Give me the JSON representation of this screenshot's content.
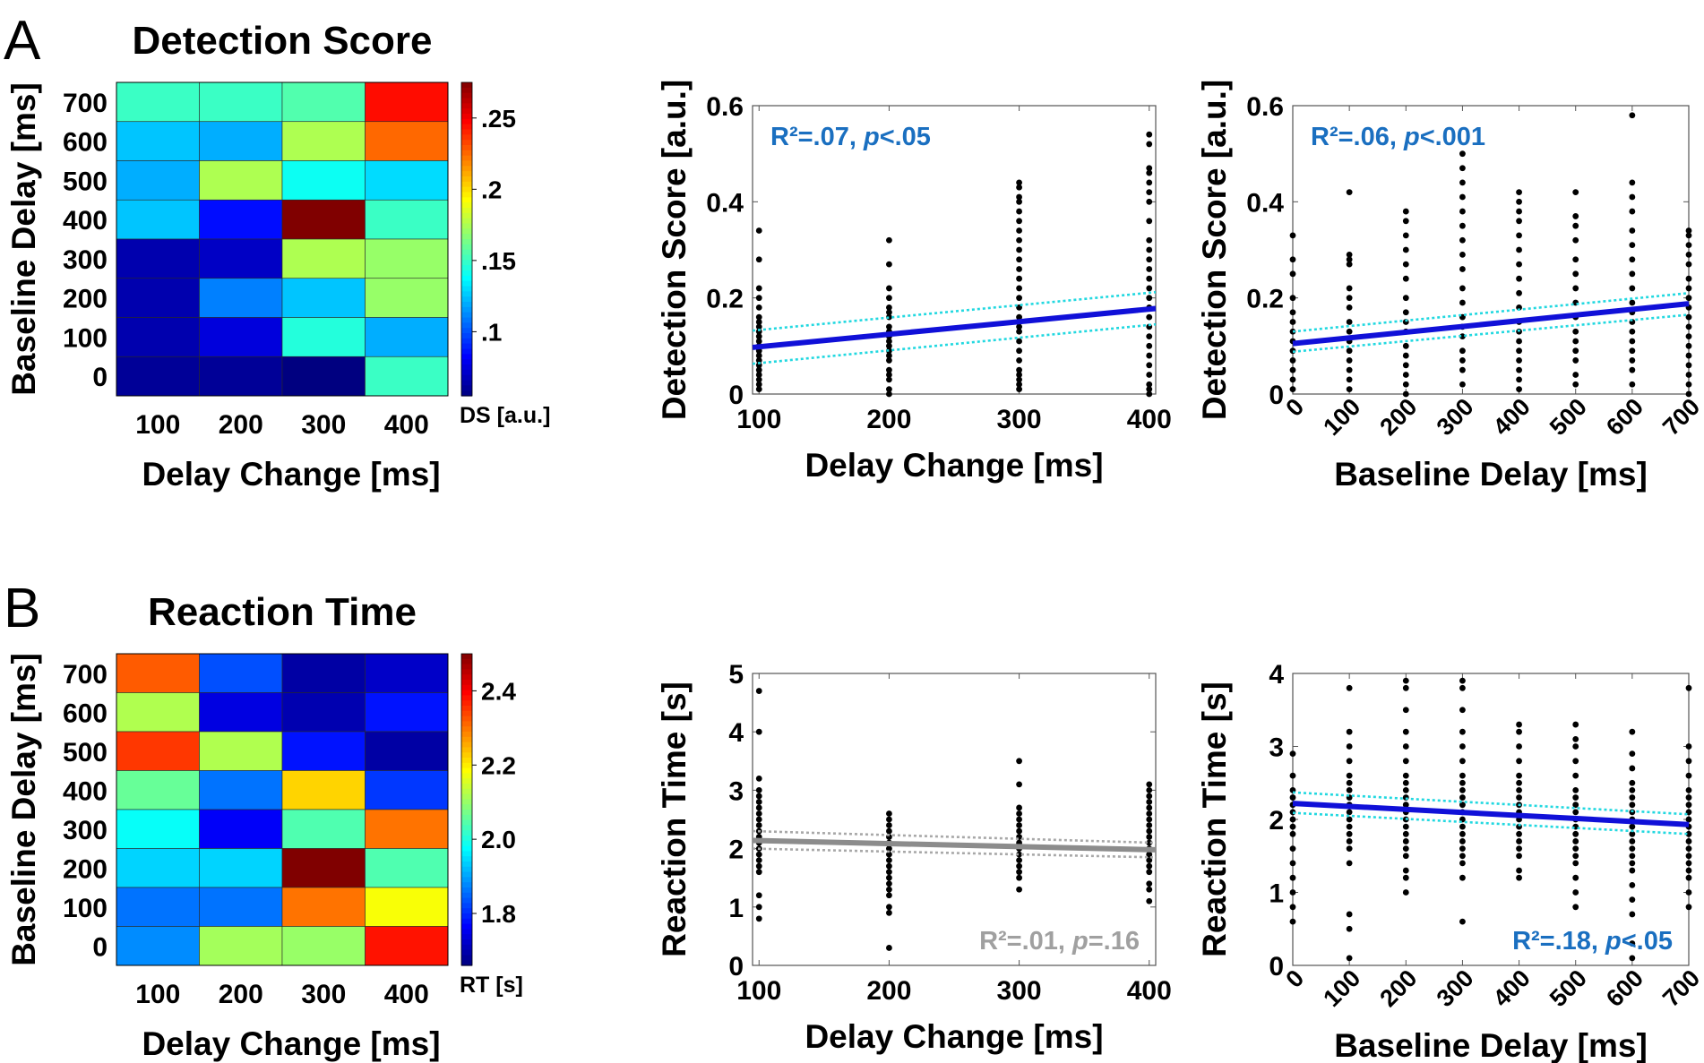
{
  "panels": {
    "a": "A",
    "b": "B"
  },
  "colors": {
    "blue_line": "#1010d8",
    "ci_line": "#22d8e0",
    "gray_line": "#8c8c8c",
    "gray_ci": "#a8a8a8",
    "stat_blue": "#1a6fc0",
    "stat_gray": "#a0a0a0"
  },
  "chart_data": [
    {
      "id": "heat-ds",
      "type": "heatmap",
      "title": "Detection Score",
      "xlabel": "Delay Change [ms]",
      "ylabel": "Baseline Delay [ms]",
      "x_categories": [
        "100",
        "200",
        "300",
        "400"
      ],
      "y_categories": [
        "700",
        "600",
        "500",
        "400",
        "300",
        "200",
        "100",
        "0"
      ],
      "values": [
        [
          0.15,
          0.15,
          0.155,
          0.245
        ],
        [
          0.125,
          0.12,
          0.175,
          0.225
        ],
        [
          0.12,
          0.175,
          0.14,
          0.13
        ],
        [
          0.125,
          0.085,
          0.275,
          0.15
        ],
        [
          0.065,
          0.07,
          0.175,
          0.17
        ],
        [
          0.065,
          0.11,
          0.125,
          0.17
        ],
        [
          0.065,
          0.075,
          0.145,
          0.12
        ],
        [
          0.06,
          0.06,
          0.055,
          0.15
        ]
      ],
      "colorbar": {
        "min": 0.055,
        "max": 0.275,
        "ticks": [
          0.1,
          0.15,
          0.2,
          0.25
        ],
        "tick_labels": [
          ".1",
          ".15",
          ".2",
          ".25"
        ],
        "label": "DS [a.u.]"
      }
    },
    {
      "id": "scatter-ds-change",
      "type": "scatter",
      "xlabel": "Delay Change [ms]",
      "ylabel": "Detection Score [a.u.]",
      "xlim": [
        95,
        405
      ],
      "ylim": [
        0,
        0.6
      ],
      "xticks": [
        100,
        200,
        300,
        400
      ],
      "xtick_labels": [
        "100",
        "200",
        "300",
        "400"
      ],
      "yticks": [
        0,
        0.2,
        0.4,
        0.6
      ],
      "ytick_labels": [
        "0",
        "0.2",
        "0.4",
        "0.6"
      ],
      "xtick_rotate": false,
      "points": [
        {
          "x": 100,
          "y": [
            0.34,
            0.28,
            0.22,
            0.2,
            0.18,
            0.16,
            0.15,
            0.14,
            0.13,
            0.12,
            0.11,
            0.1,
            0.09,
            0.08,
            0.07,
            0.06,
            0.05,
            0.04,
            0.03,
            0.02,
            0.01
          ]
        },
        {
          "x": 200,
          "y": [
            0.32,
            0.27,
            0.22,
            0.2,
            0.18,
            0.17,
            0.16,
            0.14,
            0.13,
            0.12,
            0.11,
            0.1,
            0.09,
            0.08,
            0.07,
            0.05,
            0.04,
            0.03,
            0.01,
            0.0
          ]
        },
        {
          "x": 300,
          "y": [
            0.44,
            0.43,
            0.41,
            0.4,
            0.38,
            0.36,
            0.34,
            0.32,
            0.3,
            0.28,
            0.26,
            0.24,
            0.22,
            0.2,
            0.18,
            0.16,
            0.15,
            0.14,
            0.13,
            0.11,
            0.09,
            0.07,
            0.05,
            0.04,
            0.03,
            0.02,
            0.01
          ]
        },
        {
          "x": 400,
          "y": [
            0.54,
            0.52,
            0.47,
            0.46,
            0.44,
            0.42,
            0.4,
            0.36,
            0.32,
            0.3,
            0.28,
            0.26,
            0.24,
            0.22,
            0.2,
            0.18,
            0.16,
            0.14,
            0.12,
            0.1,
            0.08,
            0.06,
            0.04,
            0.02,
            0.01,
            0.0
          ]
        }
      ],
      "fit": {
        "x": [
          95,
          405
        ],
        "y": [
          0.097,
          0.178
        ],
        "ci_upper": [
          0.132,
          0.212
        ],
        "ci_lower": [
          0.063,
          0.145
        ],
        "style": "blue"
      },
      "annotation": {
        "r2": "R²=.07, ",
        "p_sym": "p",
        "p_val": "<.05",
        "position": "top-left",
        "style": "blue"
      }
    },
    {
      "id": "scatter-ds-baseline",
      "type": "scatter",
      "xlabel": "Baseline Delay [ms]",
      "ylabel": "Detection Score [a.u.]",
      "xlim": [
        0,
        700
      ],
      "ylim": [
        0,
        0.6
      ],
      "xticks": [
        0,
        100,
        200,
        300,
        400,
        500,
        600,
        700
      ],
      "xtick_labels": [
        "0",
        "100",
        "200",
        "300",
        "400",
        "500",
        "600",
        "700"
      ],
      "yticks": [
        0,
        0.2,
        0.4,
        0.6
      ],
      "ytick_labels": [
        "0",
        "0.2",
        "0.4",
        "0.6"
      ],
      "xtick_rotate": true,
      "points": [
        {
          "x": 0,
          "y": [
            0.33,
            0.28,
            0.25,
            0.2,
            0.17,
            0.15,
            0.13,
            0.11,
            0.09,
            0.07,
            0.05,
            0.03,
            0.01
          ]
        },
        {
          "x": 100,
          "y": [
            0.42,
            0.29,
            0.28,
            0.27,
            0.22,
            0.2,
            0.18,
            0.15,
            0.13,
            0.11,
            0.09,
            0.07,
            0.05,
            0.03,
            0.01
          ]
        },
        {
          "x": 200,
          "y": [
            0.38,
            0.36,
            0.33,
            0.3,
            0.27,
            0.24,
            0.2,
            0.17,
            0.15,
            0.13,
            0.1,
            0.08,
            0.06,
            0.04,
            0.02,
            0.0
          ]
        },
        {
          "x": 300,
          "y": [
            0.5,
            0.47,
            0.44,
            0.41,
            0.38,
            0.35,
            0.32,
            0.29,
            0.26,
            0.22,
            0.19,
            0.16,
            0.14,
            0.12,
            0.09,
            0.07,
            0.05,
            0.02
          ]
        },
        {
          "x": 400,
          "y": [
            0.42,
            0.4,
            0.38,
            0.36,
            0.33,
            0.3,
            0.27,
            0.24,
            0.21,
            0.18,
            0.15,
            0.13,
            0.11,
            0.09,
            0.07,
            0.05,
            0.03,
            0.01
          ]
        },
        {
          "x": 500,
          "y": [
            0.42,
            0.37,
            0.35,
            0.32,
            0.28,
            0.25,
            0.22,
            0.19,
            0.16,
            0.13,
            0.11,
            0.09,
            0.07,
            0.04,
            0.02
          ]
        },
        {
          "x": 600,
          "y": [
            0.58,
            0.44,
            0.41,
            0.38,
            0.34,
            0.31,
            0.28,
            0.25,
            0.22,
            0.19,
            0.17,
            0.15,
            0.13,
            0.11,
            0.09,
            0.07,
            0.05,
            0.02
          ]
        },
        {
          "x": 700,
          "y": [
            0.34,
            0.33,
            0.31,
            0.29,
            0.27,
            0.24,
            0.22,
            0.2,
            0.18,
            0.16,
            0.14,
            0.12,
            0.1,
            0.08,
            0.06,
            0.04,
            0.02,
            0.0
          ]
        }
      ],
      "fit": {
        "x": [
          0,
          700
        ],
        "y": [
          0.105,
          0.188
        ],
        "ci_upper": [
          0.13,
          0.21
        ],
        "ci_lower": [
          0.088,
          0.165
        ],
        "style": "blue"
      },
      "annotation": {
        "r2": "R²=.06, ",
        "p_sym": "p",
        "p_val": "<.001",
        "position": "top-left",
        "style": "blue"
      }
    },
    {
      "id": "heat-rt",
      "type": "heatmap",
      "title": "Reaction Time",
      "xlabel": "Delay Change [ms]",
      "ylabel": "Baseline Delay [ms]",
      "x_categories": [
        "100",
        "200",
        "300",
        "400"
      ],
      "y_categories": [
        "700",
        "600",
        "500",
        "400",
        "300",
        "200",
        "100",
        "0"
      ],
      "values": [
        [
          2.32,
          1.83,
          1.69,
          1.72
        ],
        [
          2.12,
          1.74,
          1.7,
          1.78
        ],
        [
          2.35,
          2.12,
          1.78,
          1.69
        ],
        [
          2.06,
          1.86,
          2.22,
          1.81
        ],
        [
          1.98,
          1.76,
          2.04,
          2.3
        ],
        [
          1.94,
          1.94,
          2.5,
          2.04
        ],
        [
          1.86,
          1.86,
          2.3,
          2.18
        ],
        [
          1.88,
          2.11,
          2.1,
          2.38
        ]
      ],
      "colorbar": {
        "min": 1.66,
        "max": 2.5,
        "ticks": [
          1.8,
          2.0,
          2.2,
          2.4
        ],
        "tick_labels": [
          "1.8",
          "2.0",
          "2.2",
          "2.4"
        ],
        "label": "RT [s]"
      }
    },
    {
      "id": "scatter-rt-change",
      "type": "scatter",
      "xlabel": "Delay Change [ms]",
      "ylabel": "Reaction Time [s]",
      "xlim": [
        95,
        405
      ],
      "ylim": [
        0,
        5
      ],
      "xticks": [
        100,
        200,
        300,
        400
      ],
      "xtick_labels": [
        "100",
        "200",
        "300",
        "400"
      ],
      "yticks": [
        0,
        1,
        2,
        3,
        4,
        5
      ],
      "ytick_labels": [
        "0",
        "1",
        "2",
        "3",
        "4",
        "5"
      ],
      "xtick_rotate": false,
      "points": [
        {
          "x": 100,
          "y": [
            4.7,
            4.0,
            3.2,
            3.0,
            2.9,
            2.8,
            2.7,
            2.6,
            2.5,
            2.4,
            2.3,
            2.2,
            2.1,
            2.0,
            1.9,
            1.8,
            1.7,
            1.6,
            1.2,
            1.0,
            0.8
          ]
        },
        {
          "x": 200,
          "y": [
            2.6,
            2.5,
            2.4,
            2.3,
            2.2,
            2.1,
            2.0,
            1.9,
            1.8,
            1.7,
            1.6,
            1.5,
            1.4,
            1.3,
            1.2,
            1.0,
            0.9,
            0.3
          ]
        },
        {
          "x": 300,
          "y": [
            3.5,
            3.1,
            2.7,
            2.6,
            2.5,
            2.4,
            2.3,
            2.2,
            2.1,
            2.0,
            1.9,
            1.8,
            1.7,
            1.6,
            1.5,
            1.3
          ]
        },
        {
          "x": 400,
          "y": [
            3.1,
            3.0,
            2.9,
            2.8,
            2.7,
            2.6,
            2.5,
            2.4,
            2.3,
            2.2,
            2.1,
            2.0,
            1.9,
            1.8,
            1.7,
            1.6,
            1.4,
            1.3,
            1.1
          ]
        }
      ],
      "fit": {
        "x": [
          95,
          405
        ],
        "y": [
          2.14,
          1.98
        ],
        "ci_upper": [
          2.3,
          2.1
        ],
        "ci_lower": [
          2.0,
          1.85
        ],
        "style": "gray"
      },
      "annotation": {
        "r2": "R²=.01, ",
        "p_sym": "p",
        "p_val": "=.16",
        "position": "bottom-right",
        "style": "gray"
      }
    },
    {
      "id": "scatter-rt-baseline",
      "type": "scatter",
      "xlabel": "Baseline Delay [ms]",
      "ylabel": "Reaction Time [s]",
      "xlim": [
        0,
        700
      ],
      "ylim": [
        0,
        4
      ],
      "xticks": [
        0,
        100,
        200,
        300,
        400,
        500,
        600,
        700
      ],
      "xtick_labels": [
        "0",
        "100",
        "200",
        "300",
        "400",
        "500",
        "600",
        "700"
      ],
      "yticks": [
        0,
        1,
        2,
        3,
        4
      ],
      "ytick_labels": [
        "0",
        "1",
        "2",
        "3",
        "4"
      ],
      "xtick_rotate": true,
      "points": [
        {
          "x": 0,
          "y": [
            2.9,
            2.6,
            2.4,
            2.3,
            2.2,
            2.1,
            2.0,
            1.9,
            1.8,
            1.6,
            1.4,
            1.2,
            1.0,
            0.8,
            0.6
          ]
        },
        {
          "x": 100,
          "y": [
            3.8,
            3.2,
            3.0,
            2.8,
            2.6,
            2.5,
            2.4,
            2.3,
            2.2,
            2.1,
            2.0,
            1.9,
            1.8,
            1.7,
            1.6,
            1.4,
            0.7,
            0.5,
            0.1
          ]
        },
        {
          "x": 200,
          "y": [
            3.9,
            3.8,
            3.5,
            3.2,
            3.0,
            2.8,
            2.6,
            2.5,
            2.4,
            2.3,
            2.2,
            2.1,
            2.0,
            1.9,
            1.8,
            1.7,
            1.6,
            1.5,
            1.3,
            1.2,
            1.0
          ]
        },
        {
          "x": 300,
          "y": [
            3.9,
            3.8,
            3.5,
            3.2,
            3.0,
            2.8,
            2.6,
            2.5,
            2.4,
            2.3,
            2.2,
            2.1,
            2.0,
            1.9,
            1.8,
            1.7,
            1.6,
            1.5,
            1.4,
            1.2,
            0.6
          ]
        },
        {
          "x": 400,
          "y": [
            3.3,
            3.2,
            3.0,
            2.8,
            2.6,
            2.5,
            2.4,
            2.3,
            2.2,
            2.1,
            2.0,
            1.9,
            1.8,
            1.7,
            1.6,
            1.5,
            1.3,
            1.2
          ]
        },
        {
          "x": 500,
          "y": [
            3.3,
            3.1,
            3.0,
            2.8,
            2.6,
            2.4,
            2.3,
            2.2,
            2.1,
            2.0,
            1.9,
            1.8,
            1.7,
            1.6,
            1.5,
            1.4,
            1.2,
            1.0,
            0.8
          ]
        },
        {
          "x": 600,
          "y": [
            3.2,
            2.9,
            2.7,
            2.5,
            2.4,
            2.3,
            2.2,
            2.1,
            2.0,
            1.9,
            1.8,
            1.7,
            1.6,
            1.5,
            1.4,
            1.3,
            1.1,
            0.9,
            0.7,
            0.3,
            0.1
          ]
        },
        {
          "x": 700,
          "y": [
            3.8,
            3.0,
            2.8,
            2.6,
            2.4,
            2.3,
            2.2,
            2.1,
            2.0,
            1.9,
            1.8,
            1.7,
            1.6,
            1.5,
            1.4,
            1.3,
            1.2,
            1.0,
            0.8
          ]
        }
      ],
      "fit": {
        "x": [
          0,
          700
        ],
        "y": [
          2.22,
          1.93
        ],
        "ci_upper": [
          2.37,
          2.07
        ],
        "ci_lower": [
          2.09,
          1.8
        ],
        "style": "blue"
      },
      "annotation": {
        "r2": "R²=.18, ",
        "p_sym": "p",
        "p_val": "<.05",
        "position": "bottom-right",
        "style": "blue"
      }
    }
  ]
}
